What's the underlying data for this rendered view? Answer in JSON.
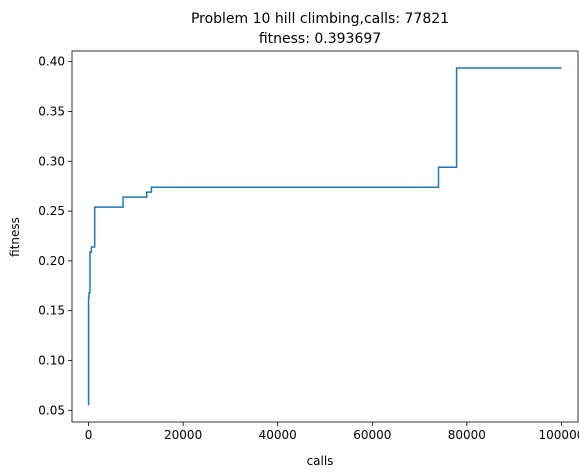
{
  "chart_data": {
    "type": "line",
    "title_line1": "Problem 10 hill climbing,calls: 77821",
    "title_line2": "fitness: 0.393697",
    "xlabel": "calls",
    "ylabel": "fitness",
    "xlim": [
      -3500,
      103500
    ],
    "ylim": [
      0.0383,
      0.4107
    ],
    "xticks": [
      0,
      20000,
      40000,
      60000,
      80000,
      100000
    ],
    "xtick_labels": [
      "0",
      "20000",
      "40000",
      "60000",
      "80000",
      "100000"
    ],
    "yticks": [
      0.05,
      0.1,
      0.15,
      0.2,
      0.25,
      0.3,
      0.35,
      0.4
    ],
    "ytick_labels": [
      "0.05",
      "0.10",
      "0.15",
      "0.20",
      "0.25",
      "0.30",
      "0.35",
      "0.40"
    ],
    "grid": false,
    "line_color": "#1f77b4",
    "series": [
      {
        "x": [
          0,
          0,
          100,
          100,
          300,
          300,
          600,
          600,
          1300,
          1300,
          7300,
          7300,
          12300,
          12300,
          13300,
          13300,
          74000,
          74000,
          77821,
          77821,
          100000
        ],
        "y": [
          0.055,
          0.163,
          0.163,
          0.168,
          0.168,
          0.209,
          0.209,
          0.214,
          0.214,
          0.254,
          0.254,
          0.264,
          0.264,
          0.269,
          0.269,
          0.274,
          0.274,
          0.294,
          0.294,
          0.393697,
          0.393697
        ]
      }
    ]
  }
}
